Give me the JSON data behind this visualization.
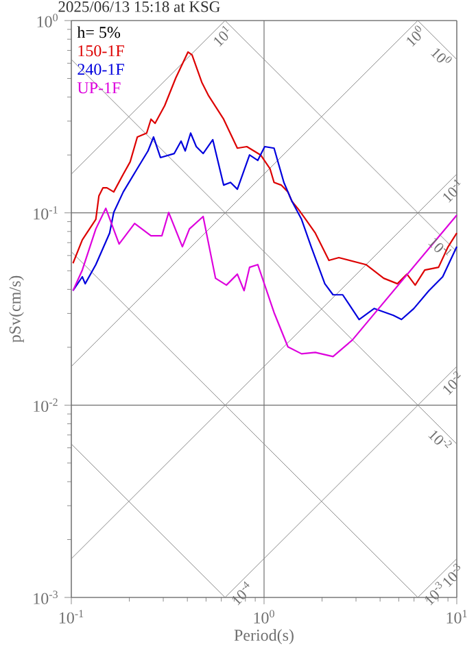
{
  "chart_data": {
    "type": "line",
    "title": "2025/06/13 15:18 at KSG",
    "xlabel": "Period(s)",
    "ylabel": "pSv(cm/s)",
    "legend_title": "h= 5%",
    "legend": "top left",
    "log": "xy",
    "grid": true,
    "xlim": [
      0.1,
      10
    ],
    "ylim": [
      0.001,
      1
    ],
    "xticks": [
      {
        "value": 0.1,
        "label": "10$^{-1}$"
      },
      {
        "value": 1,
        "label": "10$^{0}$"
      },
      {
        "value": 10,
        "label": "10$^{1}$"
      }
    ],
    "yticks": [
      {
        "value": 0.001,
        "label": "10$^{-3}$"
      },
      {
        "value": 0.01,
        "label": "10$^{-2}$"
      },
      {
        "value": 0.1,
        "label": "10$^{-1}$"
      },
      {
        "value": 1,
        "label": "10$^{0}$"
      }
    ],
    "series": [
      {
        "color": "#888888",
        "x": [
          0.1,
          0.628
        ],
        "values": [
          0.159,
          1
        ]
      },
      {
        "color": "#888888",
        "x": [
          0.1,
          6.28
        ],
        "values": [
          0.0159,
          1
        ]
      },
      {
        "color": "#888888",
        "x": [
          0.1,
          10
        ],
        "values": [
          0.00159,
          0.159
        ]
      },
      {
        "color": "#888888",
        "x": [
          0.628,
          10
        ],
        "values": [
          0.001,
          0.0159
        ]
      },
      {
        "color": "#888888",
        "x": [
          6.28,
          10
        ],
        "values": [
          0.001,
          0.00159
        ]
      },
      {
        "color": "#888888",
        "x": [
          6.28,
          10
        ],
        "values": [
          1,
          0.628
        ]
      },
      {
        "color": "#888888",
        "x": [
          0.628,
          10
        ],
        "values": [
          1,
          0.0628
        ]
      },
      {
        "color": "#888888",
        "x": [
          0.1,
          10
        ],
        "values": [
          0.628,
          0.00628
        ]
      },
      {
        "color": "#888888",
        "x": [
          0.1,
          6.28
        ],
        "values": [
          0.0628,
          0.001
        ]
      },
      {
        "color": "#888888",
        "x": [
          0.1,
          0.628
        ],
        "values": [
          0.00628,
          0.001
        ]
      },
      {
        "name": "150-1F",
        "color": "#dd0000",
        "x": [
          0.102,
          0.114,
          0.134,
          0.139,
          0.146,
          0.153,
          0.166,
          0.186,
          0.202,
          0.22,
          0.246,
          0.259,
          0.272,
          0.305,
          0.348,
          0.403,
          0.423,
          0.475,
          0.516,
          0.617,
          0.727,
          0.814,
          0.96,
          1.073,
          1.127,
          1.227,
          1.33,
          1.397,
          1.514,
          1.644,
          1.845,
          2.171,
          2.443,
          3.379,
          4.177,
          4.921,
          5.515,
          6.084,
          6.823,
          8.043,
          9.019,
          10
        ],
        "values": [
          0.0547,
          0.0724,
          0.0926,
          0.1224,
          0.135,
          0.135,
          0.1285,
          0.159,
          0.1844,
          0.248,
          0.26,
          0.307,
          0.292,
          0.361,
          0.502,
          0.686,
          0.663,
          0.478,
          0.406,
          0.307,
          0.217,
          0.221,
          0.2,
          0.17,
          0.144,
          0.1395,
          0.1285,
          0.1146,
          0.1038,
          0.0926,
          0.0785,
          0.0566,
          0.0585,
          0.0538,
          0.0457,
          0.0428,
          0.048,
          0.0421,
          0.0504,
          0.0521,
          0.0667,
          0.0785
        ]
      },
      {
        "name": "240-1F",
        "color": "#0000dd",
        "x": [
          0.102,
          0.114,
          0.118,
          0.134,
          0.158,
          0.166,
          0.186,
          0.22,
          0.25,
          0.267,
          0.29,
          0.342,
          0.371,
          0.39,
          0.416,
          0.445,
          0.483,
          0.542,
          0.617,
          0.67,
          0.727,
          0.841,
          0.928,
          1.008,
          1.127,
          1.267,
          1.397,
          1.565,
          1.756,
          2.067,
          2.28,
          2.559,
          3.114,
          3.724,
          4.686,
          5.167,
          5.985,
          7.168,
          8.449,
          10
        ],
        "values": [
          0.0394,
          0.0465,
          0.0428,
          0.0538,
          0.0785,
          0.1005,
          0.1285,
          0.17,
          0.21,
          0.248,
          0.194,
          0.2035,
          0.236,
          0.21,
          0.26,
          0.221,
          0.2035,
          0.24,
          0.1395,
          0.144,
          0.1328,
          0.2,
          0.1875,
          0.221,
          0.217,
          0.144,
          0.1146,
          0.0926,
          0.0667,
          0.0428,
          0.0375,
          0.0375,
          0.0279,
          0.0318,
          0.0293,
          0.0279,
          0.0318,
          0.0394,
          0.0465,
          0.0667
        ]
      },
      {
        "name": "UP-1F",
        "color": "#dd00dd",
        "x": [
          0.102,
          0.114,
          0.134,
          0.151,
          0.177,
          0.213,
          0.259,
          0.295,
          0.32,
          0.377,
          0.41,
          0.483,
          0.56,
          0.638,
          0.727,
          0.788,
          0.841,
          0.928,
          1.127,
          1.33,
          1.565,
          1.845,
          2.28,
          2.87,
          10
        ],
        "values": [
          0.0394,
          0.0504,
          0.0825,
          0.1056,
          0.0689,
          0.0881,
          0.076,
          0.076,
          0.1005,
          0.0667,
          0.0825,
          0.0957,
          0.0457,
          0.0421,
          0.048,
          0.0394,
          0.0521,
          0.0538,
          0.0303,
          0.0201,
          0.0185,
          0.0188,
          0.0179,
          0.0218,
          0.0973
        ]
      }
    ],
    "annotations": [
      {
        "text": "10$^{1}$",
        "x": 0.628,
        "y": 1
      },
      {
        "text": "10$^{0}$",
        "x": 6.28,
        "y": 1
      },
      {
        "text": "10$^{-1}$",
        "x": 10,
        "y": 0.159
      },
      {
        "text": "10$^{-2}$",
        "x": 10,
        "y": 0.0159
      },
      {
        "text": "10$^{-3}$",
        "x": 10,
        "y": 0.00159
      },
      {
        "text": "10$^{0}$",
        "x": 10,
        "y": 0.628
      },
      {
        "text": "10$^{-1}$",
        "x": 10,
        "y": 0.0628
      },
      {
        "text": "10$^{-2}$",
        "x": 10,
        "y": 0.00628
      },
      {
        "text": "10$^{-3}$",
        "x": 6.28,
        "y": 0.001
      },
      {
        "text": "10$^{-4}$",
        "x": 0.628,
        "y": 0.001
      }
    ]
  }
}
